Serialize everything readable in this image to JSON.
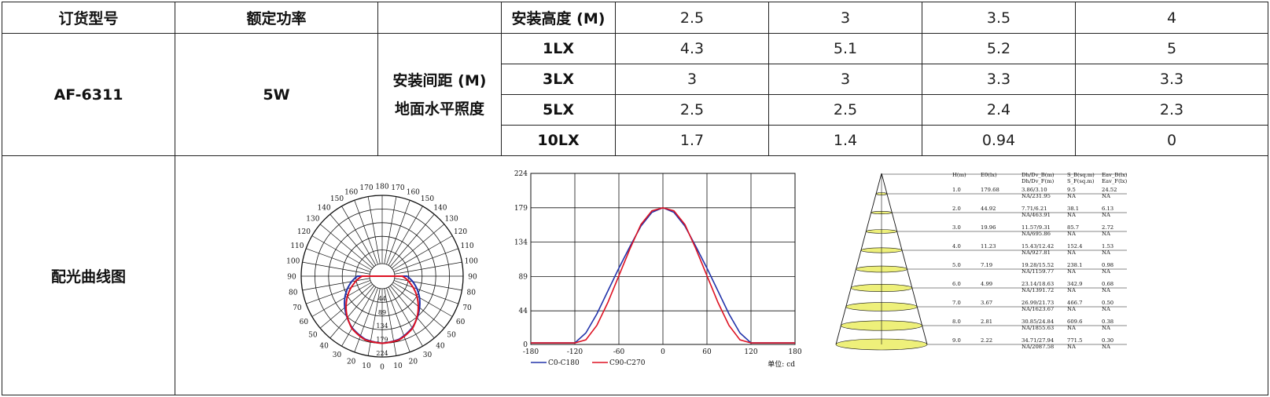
{
  "header": {
    "order_model": "订货型号",
    "rated_power": "额定功率",
    "install_height": "安装高度 (M)",
    "heights": [
      "2.5",
      "3",
      "3.5",
      "4"
    ]
  },
  "product": {
    "model": "AF-6311",
    "power": "5W",
    "spacing_label": "安装间距 (M)",
    "illuminance_label": "地面水平照度"
  },
  "rows": [
    {
      "lux": "1LX",
      "values": [
        "4.3",
        "5.1",
        "5.2",
        "5"
      ]
    },
    {
      "lux": "3LX",
      "values": [
        "3",
        "3",
        "3.3",
        "3.3"
      ]
    },
    {
      "lux": "5LX",
      "values": [
        "2.5",
        "2.5",
        "2.4",
        "2.3"
      ]
    },
    {
      "lux": "10LX",
      "values": [
        "1.7",
        "1.4",
        "0.94",
        "0"
      ]
    }
  ],
  "curves_label": "配光曲线图",
  "polar": {
    "angles_left": [
      "180",
      "170",
      "160",
      "150",
      "140",
      "130",
      "120",
      "110",
      "100",
      "90",
      "80",
      "70",
      "60",
      "50",
      "40",
      "30",
      "20",
      "10",
      "0"
    ],
    "angles_right": [
      "170",
      "160",
      "150",
      "140",
      "130",
      "120",
      "110",
      "100",
      "90",
      "80",
      "70",
      "60",
      "50",
      "40",
      "30",
      "20",
      "10"
    ],
    "radial_labels": [
      "44",
      "89",
      "134",
      "179",
      "224"
    ],
    "colors": {
      "c0": "#2233aa",
      "c90": "#dd1122"
    }
  },
  "chart_data": {
    "type": "line",
    "x": [
      -180,
      -150,
      -120,
      -105,
      -90,
      -75,
      -60,
      -45,
      -30,
      -15,
      0,
      15,
      30,
      45,
      60,
      75,
      90,
      105,
      120,
      150,
      180
    ],
    "series": [
      {
        "name": "C0-C180",
        "color": "#2233aa",
        "values": [
          2,
          2,
          2,
          15,
          40,
          70,
          100,
          128,
          155,
          173,
          179,
          173,
          155,
          128,
          100,
          70,
          40,
          15,
          2,
          2,
          2
        ]
      },
      {
        "name": "C90-C270",
        "color": "#dd1122",
        "values": [
          2,
          2,
          2,
          6,
          25,
          55,
          90,
          125,
          157,
          175,
          179,
          175,
          157,
          125,
          90,
          55,
          25,
          6,
          2,
          2,
          2
        ]
      }
    ],
    "xlim": [
      -180,
      180
    ],
    "ylim": [
      0,
      224
    ],
    "xticks": [
      "-180",
      "-120",
      "-60",
      "0",
      "60",
      "120",
      "180"
    ],
    "yticks": [
      "0",
      "44",
      "89",
      "134",
      "179",
      "224"
    ],
    "unit_label": "单位: cd"
  },
  "cone": {
    "headers": [
      "H(m)",
      "E0(lx)",
      "Dh/Dv_B(m)",
      "S_B(sq.m)",
      "Eav_B(lx)"
    ],
    "headers2": [
      "Dh/Dv_F(m)",
      "S_F(sq.m)",
      "Eav_F(lx)"
    ],
    "rows": [
      {
        "h": "1.0",
        "e0": "179.68",
        "d1": "3.86/3.10",
        "d2": "NA/231.95",
        "s": "9.5",
        "s2": "NA",
        "eav": "24.52",
        "eav2": "NA"
      },
      {
        "h": "2.0",
        "e0": "44.92",
        "d1": "7.71/6.21",
        "d2": "NA/463.91",
        "s": "38.1",
        "s2": "NA",
        "eav": "6.13",
        "eav2": "NA"
      },
      {
        "h": "3.0",
        "e0": "19.96",
        "d1": "11.57/9.31",
        "d2": "NA/695.86",
        "s": "85.7",
        "s2": "NA",
        "eav": "2.72",
        "eav2": "NA"
      },
      {
        "h": "4.0",
        "e0": "11.23",
        "d1": "15.43/12.42",
        "d2": "NA/927.81",
        "s": "152.4",
        "s2": "NA",
        "eav": "1.53",
        "eav2": "NA"
      },
      {
        "h": "5.0",
        "e0": "7.19",
        "d1": "19.28/15.52",
        "d2": "NA/1159.77",
        "s": "238.1",
        "s2": "NA",
        "eav": "0.98",
        "eav2": "NA"
      },
      {
        "h": "6.0",
        "e0": "4.99",
        "d1": "23.14/18.63",
        "d2": "NA/1391.72",
        "s": "342.9",
        "s2": "NA",
        "eav": "0.68",
        "eav2": "NA"
      },
      {
        "h": "7.0",
        "e0": "3.67",
        "d1": "26.99/21.73",
        "d2": "NA/1623.67",
        "s": "466.7",
        "s2": "NA",
        "eav": "0.50",
        "eav2": "NA"
      },
      {
        "h": "8.0",
        "e0": "2.81",
        "d1": "30.85/24.84",
        "d2": "NA/1855.63",
        "s": "609.6",
        "s2": "NA",
        "eav": "0.38",
        "eav2": "NA"
      },
      {
        "h": "9.0",
        "e0": "2.22",
        "d1": "34.71/27.94",
        "d2": "NA/2087.58",
        "s": "771.5",
        "s2": "NA",
        "eav": "0.30",
        "eav2": "NA"
      }
    ],
    "fill_color": "#eef07a"
  }
}
